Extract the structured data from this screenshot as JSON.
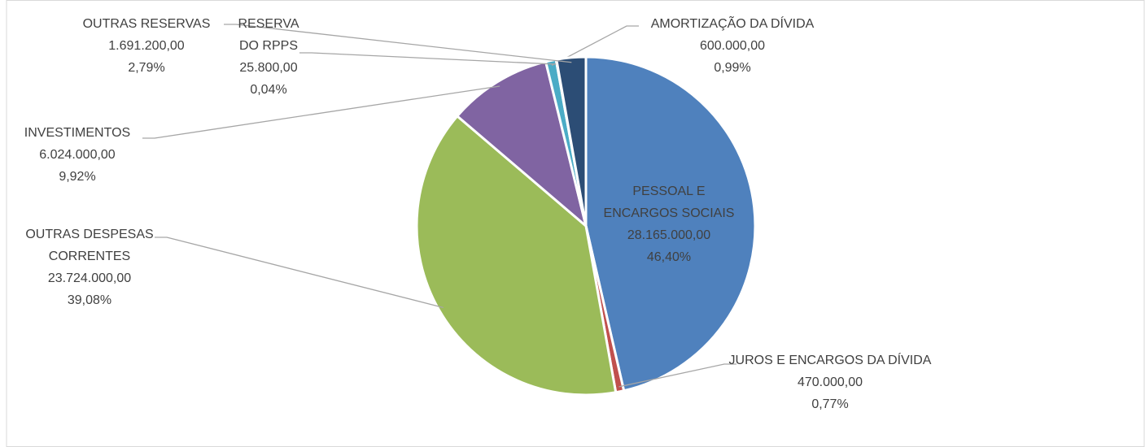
{
  "chart_data": {
    "type": "pie",
    "categories": [
      "PESSOAL E ENCARGOS SOCIAIS",
      "JUROS E ENCARGOS DA DÍVIDA",
      "OUTRAS DESPESAS CORRENTES",
      "INVESTIMENTOS",
      "AMORTIZAÇÃO DA DÍVIDA",
      "RESERVA DO RPPS",
      "OUTRAS RESERVAS"
    ],
    "values": [
      28165000,
      470000,
      23724000,
      6024000,
      600000,
      25800,
      1691200
    ],
    "value_labels": [
      "28.165.000,00",
      "470.000,00",
      "23.724.000,00",
      "6.024.000,00",
      "600.000,00",
      "25.800,00",
      "1.691.200,00"
    ],
    "percents": [
      46.4,
      0.77,
      39.08,
      9.92,
      0.99,
      0.04,
      2.79
    ],
    "percent_labels": [
      "46,40%",
      "0,77%",
      "39,08%",
      "9,92%",
      "0,99%",
      "0,04%",
      "2,79%"
    ],
    "colors": [
      "#4f81bd",
      "#c0504d",
      "#9bbb59",
      "#8064a2",
      "#4bacc6",
      "#f79646",
      "#2c4d75"
    ]
  }
}
